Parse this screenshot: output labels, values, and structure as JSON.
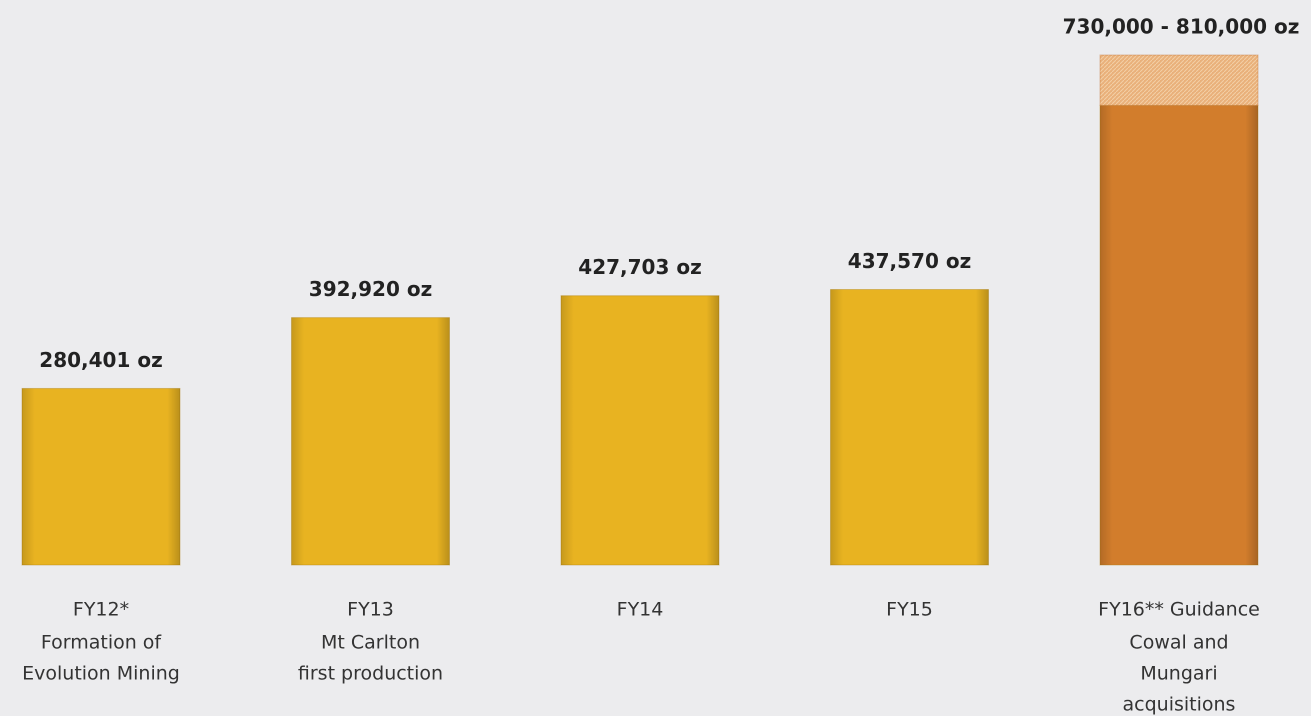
{
  "chart_data": {
    "type": "bar",
    "categories": [
      "FY12*",
      "FY13",
      "FY14",
      "FY15",
      "FY16** Guidance"
    ],
    "category_notes": [
      [
        "Formation of",
        "Evolution Mining"
      ],
      [
        "Mt Carlton",
        "first production"
      ],
      null,
      null,
      [
        "Cowal and",
        "Mungari",
        "acquisitions"
      ]
    ],
    "values": [
      280401,
      392920,
      427703,
      437570,
      730000
    ],
    "range_high": [
      null,
      null,
      null,
      null,
      810000
    ],
    "value_labels": [
      "280,401 oz",
      "392,920 oz",
      "427,703 oz",
      "437,570 oz",
      "730,000 - 810,000 oz"
    ],
    "colors": [
      "#e8b321",
      "#e8b321",
      "#e8b321",
      "#e8b321",
      "#d27d2c"
    ],
    "range_color": "#e9b07a"
  }
}
